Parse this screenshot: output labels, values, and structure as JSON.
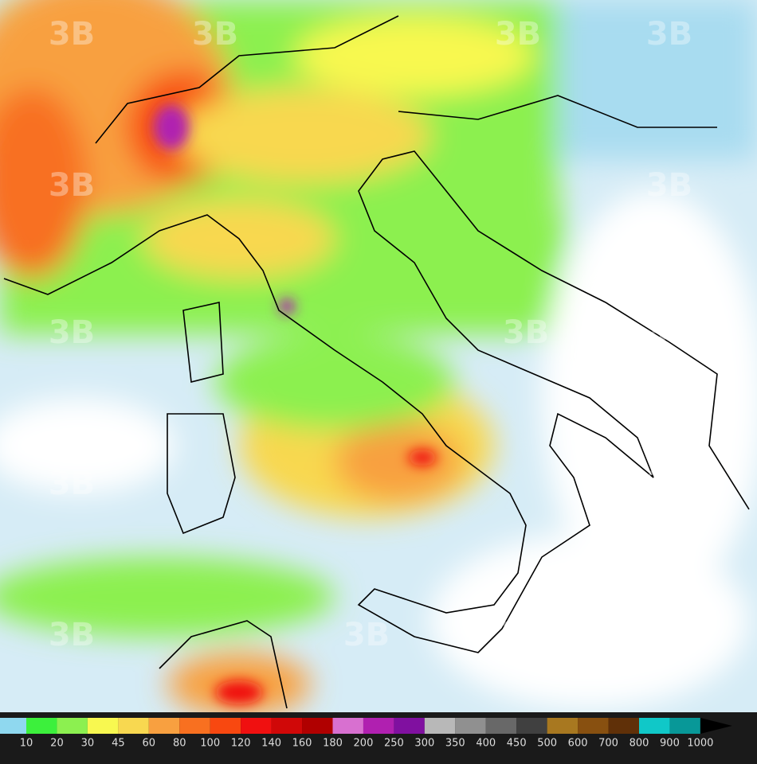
{
  "legend": {
    "thresholds": [
      10,
      20,
      30,
      45,
      60,
      80,
      100,
      120,
      140,
      160,
      180,
      200,
      250,
      300,
      350,
      400,
      450,
      500,
      600,
      700,
      800,
      900,
      1000
    ],
    "colors": [
      "#8fd8ef",
      "#3cf03c",
      "#8cf050",
      "#f8f850",
      "#f8d850",
      "#f8a040",
      "#f87020",
      "#f84810",
      "#f01010",
      "#d00808",
      "#b00000",
      "#d870d0",
      "#b020b0",
      "#8010a0",
      "#b8b8b8",
      "#909090",
      "#686868",
      "#404040",
      "#a87820",
      "#885010",
      "#603008",
      "#10c8c8",
      "#089898"
    ]
  },
  "watermark": "3B"
}
